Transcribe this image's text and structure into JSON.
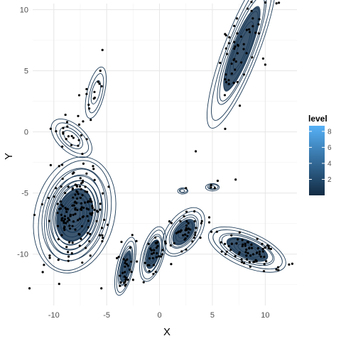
{
  "chart_data": {
    "type": "scatter",
    "subtype": "scatter with 2D density contours",
    "xlabel": "X",
    "ylabel": "Y",
    "xlim": [
      -12,
      13
    ],
    "ylim": [
      -14.2,
      10.5
    ],
    "x_ticks": [
      -10,
      -5,
      0,
      5,
      10
    ],
    "y_ticks": [
      -10,
      -5,
      0,
      5,
      10
    ],
    "grid": true,
    "legend": {
      "title": "level",
      "position": "right",
      "range": [
        0,
        8.7
      ],
      "ticks": [
        2,
        4,
        6,
        8
      ],
      "color_low": "#132b43",
      "color_high": "#56b1f7"
    },
    "colors": {
      "contour": "#1b3a57",
      "points": "#000000",
      "grid": "#e6e6e6"
    },
    "clusters": [
      {
        "cx": 7.8,
        "cy": 6.8,
        "sx": 1.6,
        "sy": 3.2,
        "rho": 0.85,
        "peak": 3.5
      },
      {
        "cx": -6.0,
        "cy": 3.2,
        "sx": 0.6,
        "sy": 1.3,
        "rho": 0.55,
        "peak": 1.5
      },
      {
        "cx": -8.3,
        "cy": -0.5,
        "sx": 1.1,
        "sy": 0.9,
        "rho": -0.55,
        "peak": 1.6
      },
      {
        "cx": -8.0,
        "cy": -6.8,
        "sx": 1.6,
        "sy": 2.0,
        "rho": 0.2,
        "peak": 8.5
      },
      {
        "cx": -3.2,
        "cy": -11.0,
        "sx": 0.5,
        "sy": 1.2,
        "rho": 0.6,
        "peak": 3.2
      },
      {
        "cx": -0.6,
        "cy": -10.0,
        "sx": 0.6,
        "sy": 1.1,
        "rho": 0.5,
        "peak": 3.5
      },
      {
        "cx": 2.3,
        "cy": -8.2,
        "sx": 1.0,
        "sy": 1.0,
        "rho": 0.5,
        "peak": 3.0
      },
      {
        "cx": 8.3,
        "cy": -9.6,
        "sx": 1.8,
        "sy": 0.9,
        "rho": -0.6,
        "peak": 3.6
      },
      {
        "cx": 5.0,
        "cy": -4.5,
        "sx": 0.4,
        "sy": 0.18,
        "rho": 0.0,
        "peak": 1.2
      },
      {
        "cx": 2.2,
        "cy": -4.8,
        "sx": 0.3,
        "sy": 0.15,
        "rho": 0.0,
        "peak": 0.8
      }
    ],
    "cluster_point_counts": [
      60,
      10,
      16,
      150,
      28,
      28,
      40,
      70,
      3,
      0
    ],
    "extra_points": [
      [
        -5.4,
        6.7
      ],
      [
        -5.6,
        5.0
      ],
      [
        -10.5,
        -5.4
      ],
      [
        -9.8,
        -4.6
      ],
      [
        -12.3,
        -12.8
      ],
      [
        -5.5,
        -12.8
      ],
      [
        5.5,
        -4.0
      ],
      [
        7.2,
        -3.9
      ],
      [
        2.5,
        -4.6
      ],
      [
        -7.3,
        -1.8
      ],
      [
        -9.2,
        -1.2
      ],
      [
        -8.9,
        1.4
      ],
      [
        -7.7,
        1.3
      ],
      [
        -6.9,
        3.5
      ],
      [
        -6.9,
        3.1
      ],
      [
        -7.6,
        3.0
      ],
      [
        -7.2,
        -2.6
      ],
      [
        -9.5,
        -2.8
      ],
      [
        -7.6,
        0.6
      ],
      [
        -1.5,
        -12.3
      ],
      [
        -2.5,
        -12.1
      ],
      [
        -3.6,
        -9.0
      ],
      [
        3.3,
        -6.5
      ],
      [
        4.7,
        -7.4
      ],
      [
        6.3,
        7.9
      ],
      [
        6.2,
        8.0
      ],
      [
        9.8,
        6.0
      ],
      [
        10.0,
        5.5
      ],
      [
        -3.2,
        -12.5
      ],
      [
        -8.6,
        -10.2
      ]
    ]
  }
}
